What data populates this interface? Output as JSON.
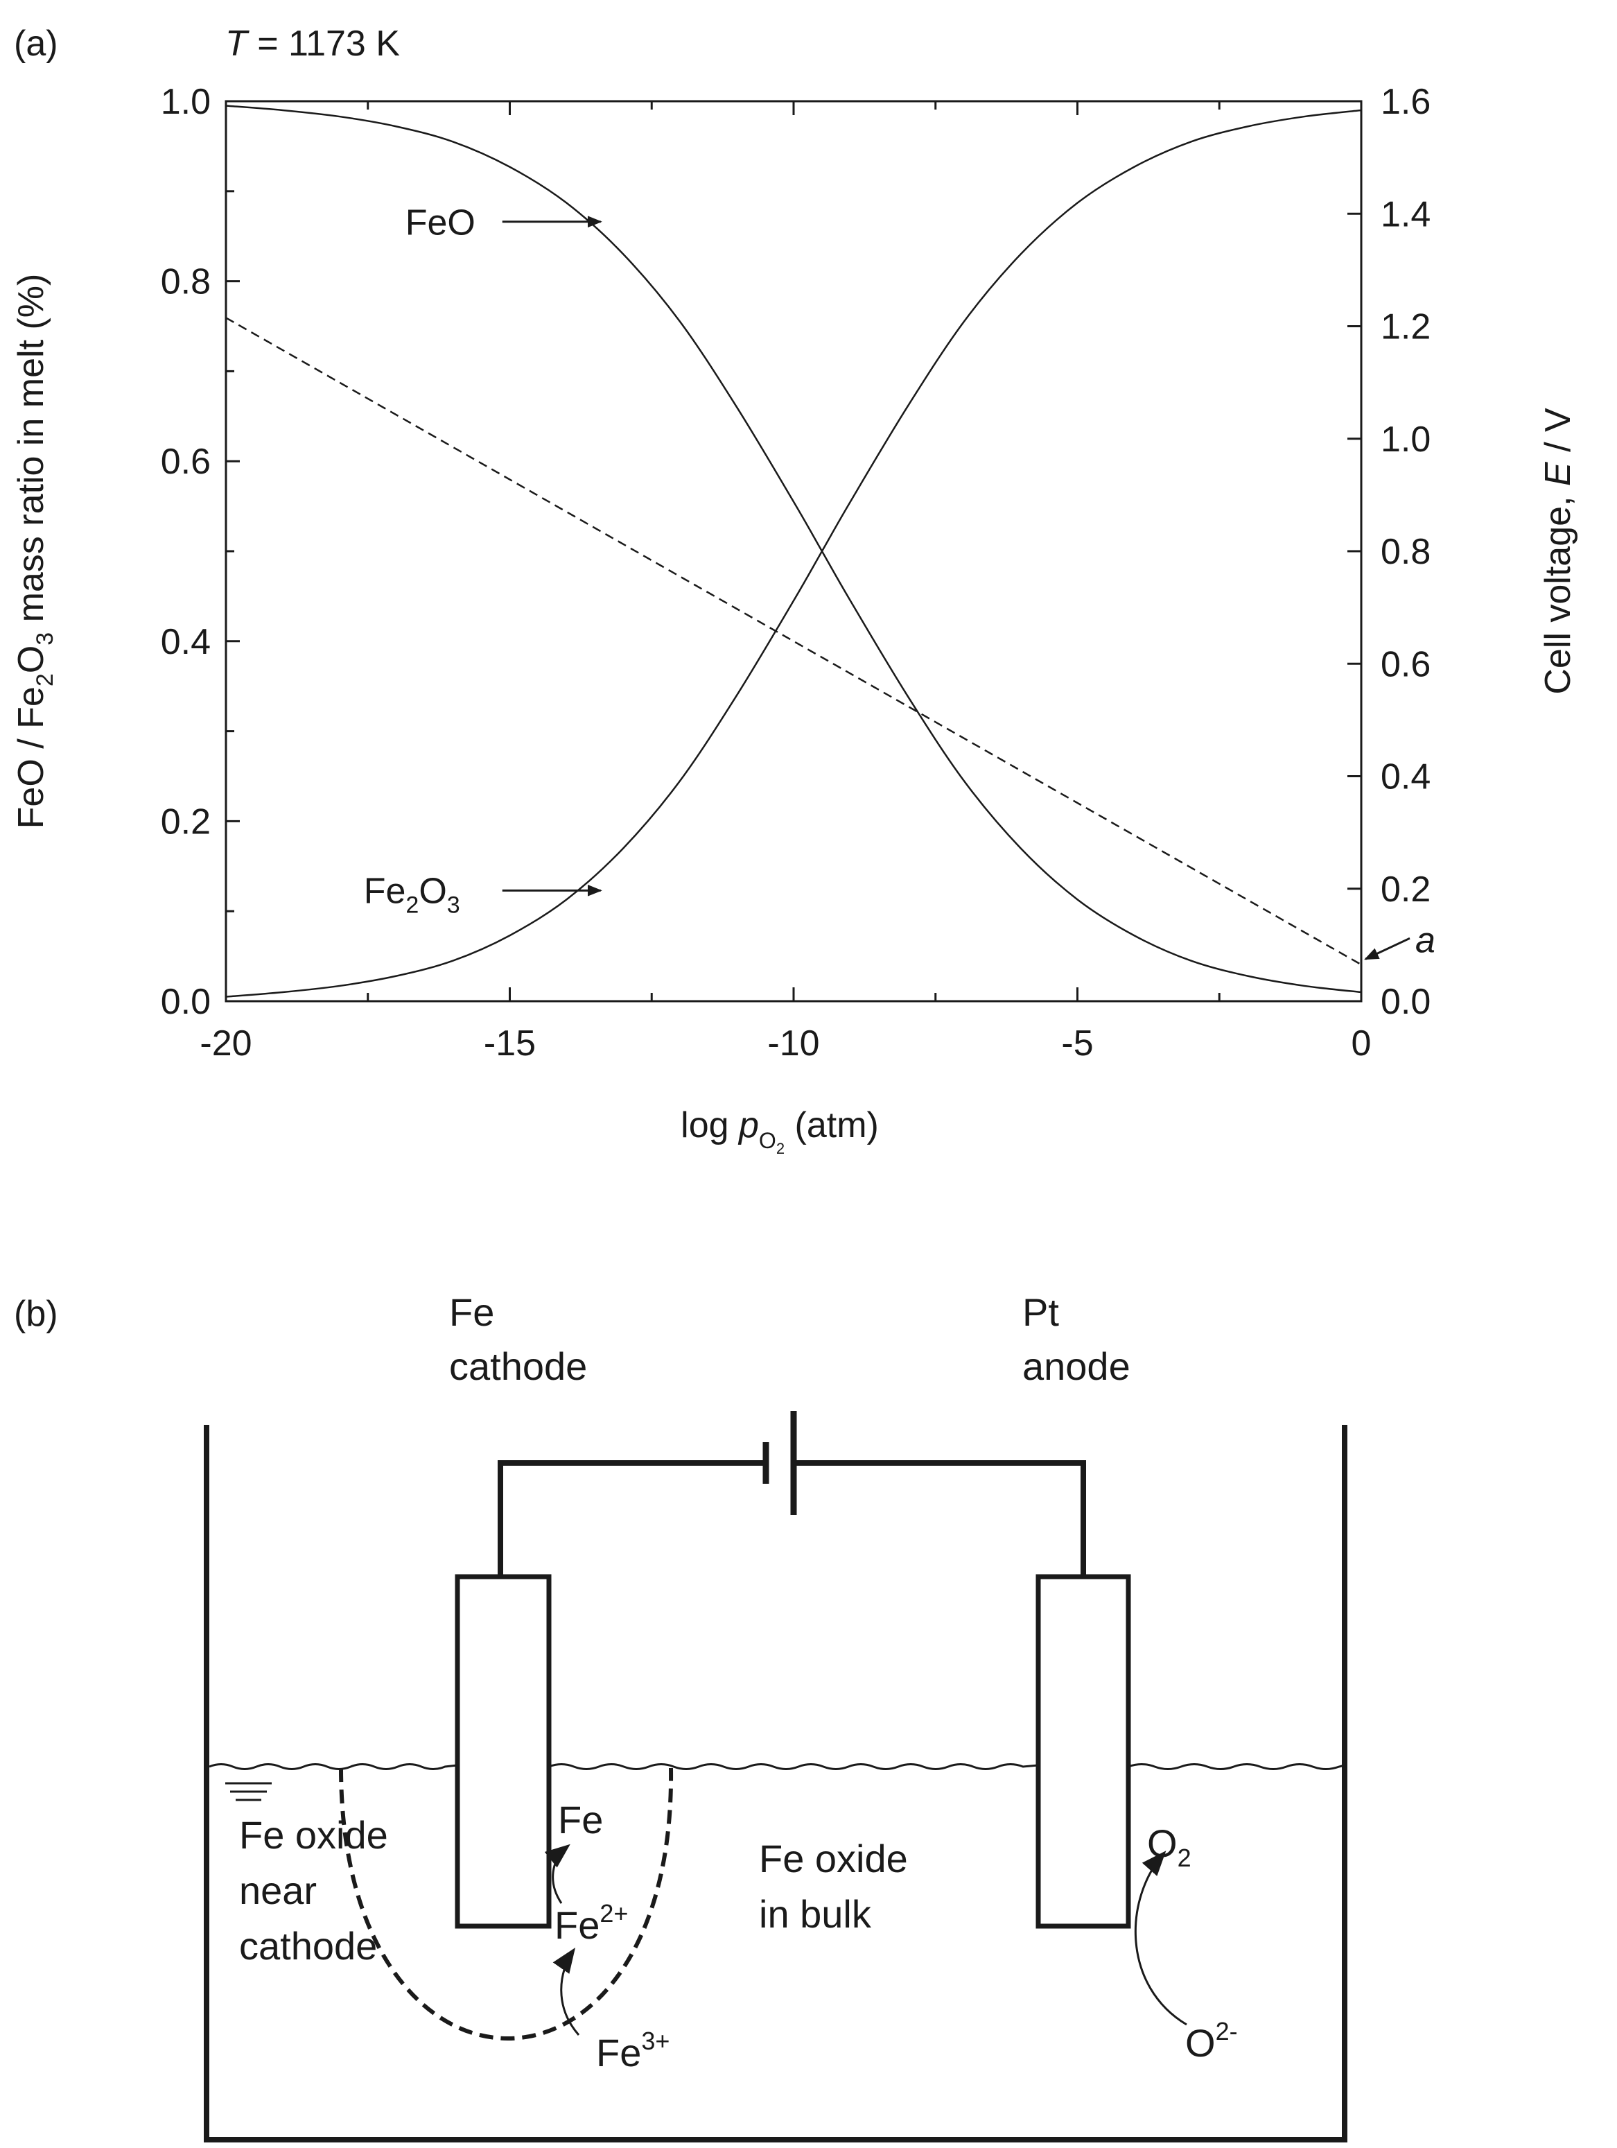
{
  "chart_data": [
    {
      "type": "line",
      "panel_label": "(a)",
      "title_prefix": "T",
      "title_rest": " = 1173 K",
      "xlabel_prefix": "log ",
      "xlabel_p": "p",
      "xlabel_sub1": "O",
      "xlabel_sub2": "2",
      "xlabel_suffix": " (atm)",
      "ylabel_left_parts": [
        "FeO / Fe",
        "2",
        "O",
        "3",
        " mass ratio in melt (%)"
      ],
      "ylabel_right_prefix": "Cell voltage, ",
      "ylabel_right_italic": "E",
      "ylabel_right_suffix": " / V",
      "xlim": [
        -20,
        0
      ],
      "ylim_left": [
        0.0,
        1.0
      ],
      "ylim_right": [
        0.0,
        1.6
      ],
      "x_ticks": [
        "-20",
        "-15",
        "-10",
        "-5",
        "0"
      ],
      "x_tick_values": [
        -20,
        -15,
        -10,
        -5,
        0
      ],
      "y_left_ticks": [
        "0.0",
        "0.2",
        "0.4",
        "0.6",
        "0.8",
        "1.0"
      ],
      "y_left_tick_values": [
        0.0,
        0.2,
        0.4,
        0.6,
        0.8,
        1.0
      ],
      "y_right_ticks": [
        "0.0",
        "0.2",
        "0.4",
        "0.6",
        "0.8",
        "1.0",
        "1.2",
        "1.4",
        "1.6"
      ],
      "y_right_tick_values": [
        0.0,
        0.2,
        0.4,
        0.6,
        0.8,
        1.0,
        1.2,
        1.4,
        1.6
      ],
      "grid": false,
      "series": [
        {
          "name": "FeO",
          "axis": "left",
          "style": "solid",
          "x": [
            -20,
            -19,
            -18,
            -17,
            -16,
            -15,
            -14,
            -13,
            -12,
            -11,
            -10,
            -9.5,
            -9,
            -8,
            -7,
            -6,
            -5,
            -4,
            -3,
            -2,
            -1,
            0
          ],
          "y": [
            0.995,
            0.99,
            0.983,
            0.972,
            0.955,
            0.927,
            0.887,
            0.83,
            0.755,
            0.66,
            0.555,
            0.5,
            0.445,
            0.34,
            0.245,
            0.17,
            0.113,
            0.073,
            0.045,
            0.028,
            0.017,
            0.01
          ]
        },
        {
          "name": "Fe2O3",
          "axis": "left",
          "style": "solid",
          "x": [
            -20,
            -19,
            -18,
            -17,
            -16,
            -15,
            -14,
            -13,
            -12,
            -11,
            -10,
            -9.5,
            -9,
            -8,
            -7,
            -6,
            -5,
            -4,
            -3,
            -2,
            -1,
            0
          ],
          "y": [
            0.005,
            0.01,
            0.017,
            0.028,
            0.045,
            0.073,
            0.113,
            0.17,
            0.245,
            0.34,
            0.445,
            0.5,
            0.555,
            0.66,
            0.755,
            0.83,
            0.887,
            0.927,
            0.955,
            0.972,
            0.983,
            0.99
          ]
        },
        {
          "name": "Cell voltage",
          "axis": "right",
          "style": "dashed",
          "x": [
            -20,
            0
          ],
          "y": [
            1.215,
            0.065
          ]
        }
      ],
      "annotations": [
        {
          "label": "FeO",
          "sub": "",
          "label2": "",
          "sub2": "",
          "target_x": -13.3,
          "target_y": 0.87,
          "axis": "left"
        },
        {
          "label": "Fe",
          "sub": "2",
          "label2": "O",
          "sub2": "3",
          "target_x": -13.3,
          "target_y": 0.123,
          "axis": "left"
        },
        {
          "label": "a",
          "sub": "",
          "label2": "",
          "sub2": "",
          "target_x": 0,
          "target_y": 0.065,
          "axis": "right"
        }
      ]
    }
  ],
  "diagram": {
    "panel_label": "(b)",
    "cathode_line1": "Fe",
    "cathode_line2": "cathode",
    "anode_line1": "Pt",
    "anode_line2": "anode",
    "near_line1": "Fe oxide",
    "near_line2": "near",
    "near_line3": "cathode",
    "bulk_line1": "Fe oxide",
    "bulk_line2": "in bulk",
    "fe_label": "Fe",
    "fe2_base": "Fe",
    "fe2_sup": "2+",
    "fe3_base": "Fe",
    "fe3_sup": "3+",
    "o2_base": "O",
    "o2_sub": "2",
    "o2m_base": "O",
    "o2m_sup": "2-"
  }
}
